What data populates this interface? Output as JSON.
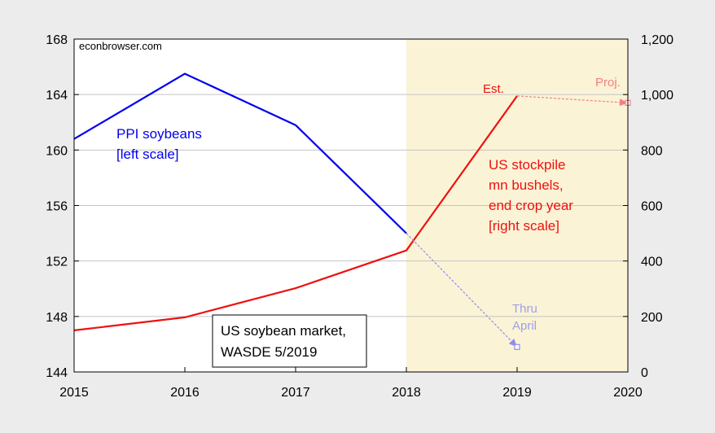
{
  "chart_data": {
    "type": "line",
    "source": "econbrowser.com",
    "x": [
      2015,
      2016,
      2017,
      2018,
      2019,
      2020
    ],
    "x_tick_labels": [
      "2015",
      "2016",
      "2017",
      "2018",
      "2019",
      "2020"
    ],
    "xlim": [
      2015,
      2020
    ],
    "y_left": {
      "ylim": [
        144,
        168
      ],
      "ticks": [
        144,
        148,
        152,
        156,
        160,
        164,
        168
      ],
      "tick_labels": [
        "144",
        "148",
        "152",
        "156",
        "160",
        "164",
        "168"
      ]
    },
    "y_right": {
      "ylim": [
        0,
        1200
      ],
      "ticks": [
        0,
        200,
        400,
        600,
        800,
        1000,
        1200
      ],
      "tick_labels": [
        "0",
        "200",
        "400",
        "600",
        "800",
        "1,000",
        "1,200"
      ]
    },
    "shaded_region": {
      "x_start": 2018,
      "x_end": 2020,
      "color": "#fbf3d6"
    },
    "grid": true,
    "series": [
      {
        "key": "ppi",
        "name": "PPI soybeans [left scale]",
        "axis": "left",
        "color": "#0000ee",
        "x": [
          2015,
          2016,
          2017,
          2018
        ],
        "values": [
          160.8,
          165.5,
          161.8,
          154.0
        ]
      },
      {
        "key": "stock",
        "name": "US stockpile mn bushels, end crop year [right scale]",
        "axis": "right",
        "color": "#ee1111",
        "x": [
          2015,
          2016,
          2017,
          2018,
          2019
        ],
        "values": [
          150,
          197,
          302,
          438,
          995
        ]
      },
      {
        "key": "ppi_thru_april",
        "name": "Thru April",
        "axis": "left",
        "color": "#8f8fe8",
        "dashed": true,
        "x": [
          2018,
          2019
        ],
        "values": [
          154.0,
          145.8
        ]
      },
      {
        "key": "stock_proj",
        "name": "Proj.",
        "axis": "right",
        "color": "#f08080",
        "dashed": true,
        "x": [
          2019,
          2020
        ],
        "values": [
          995,
          970
        ]
      }
    ],
    "annotations": {
      "ppi_line1": "PPI soybeans",
      "ppi_line2": "[left scale]",
      "stock_line1": "US stockpile",
      "stock_line2": "mn bushels,",
      "stock_line3": "end crop year",
      "stock_line4": "[right scale]",
      "est": "Est.",
      "proj": "Proj.",
      "thru_line1": "Thru",
      "thru_line2": "April",
      "box_line1": "US soybean market,",
      "box_line2": "WASDE 5/2019"
    }
  }
}
